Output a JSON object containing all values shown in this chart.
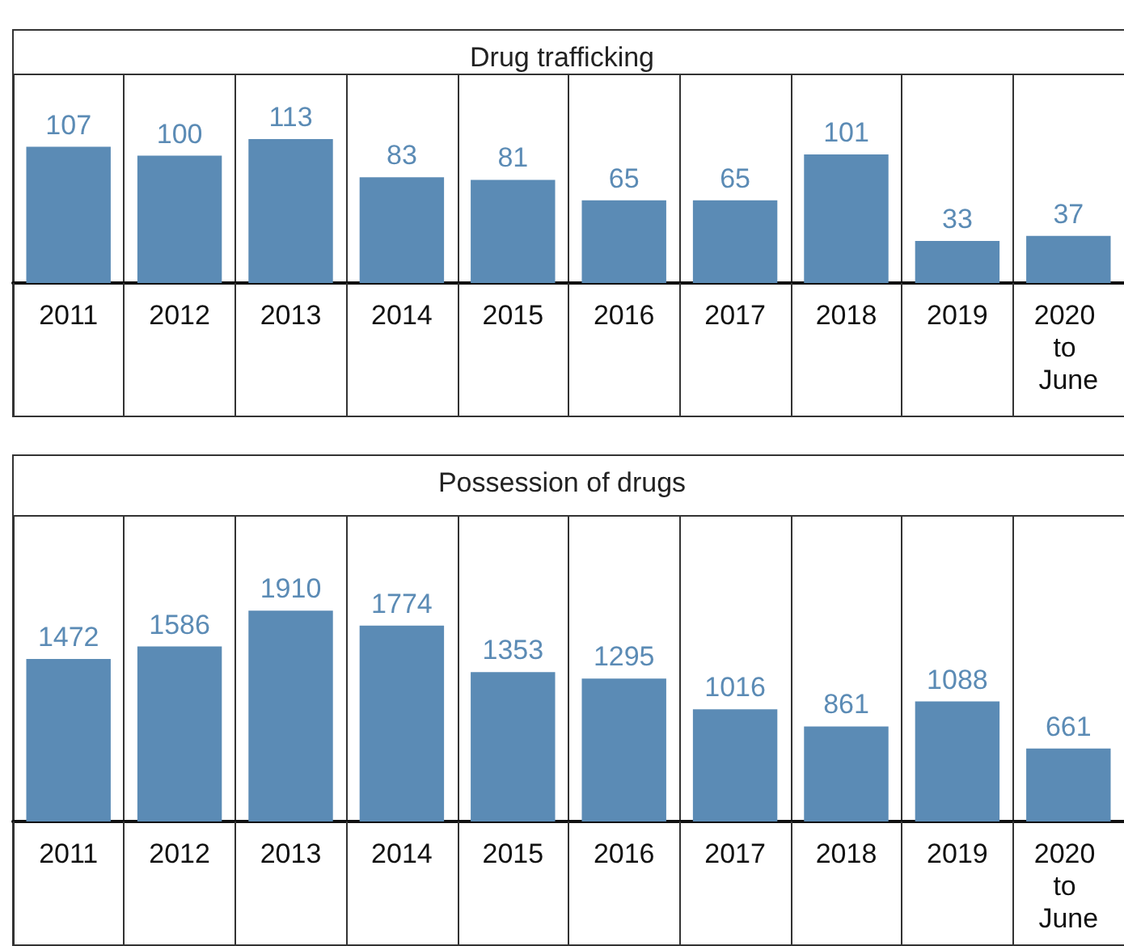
{
  "chart_data": [
    {
      "type": "bar",
      "title": "Drug trafficking",
      "categories": [
        "2011",
        "2012",
        "2013",
        "2014",
        "2015",
        "2016",
        "2017",
        "2018",
        "2019",
        "2020 to June"
      ],
      "values": [
        107,
        100,
        113,
        83,
        81,
        65,
        65,
        101,
        33,
        37
      ],
      "color": "#5b8bb5",
      "data_labels": true,
      "grid": "x"
    },
    {
      "type": "bar",
      "title": "Possession of drugs",
      "categories": [
        "2011",
        "2012",
        "2013",
        "2014",
        "2015",
        "2016",
        "2017",
        "2018",
        "2019",
        "2020 to June"
      ],
      "values": [
        1472,
        1586,
        1910,
        1774,
        1353,
        1295,
        1016,
        861,
        1088,
        661
      ],
      "color": "#5b8bb5",
      "data_labels": true,
      "grid": "x"
    }
  ]
}
